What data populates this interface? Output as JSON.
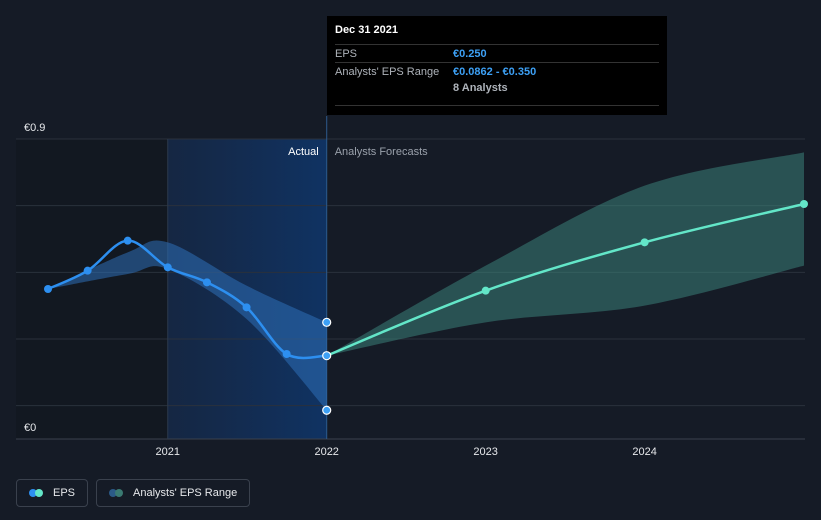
{
  "chart_data": {
    "type": "line",
    "x_axis": {
      "type": "time",
      "range": [
        "2020-03-31",
        "2024-12-31"
      ],
      "ticks": [
        "2021",
        "2022",
        "2023",
        "2024"
      ]
    },
    "y_axis": {
      "range": [
        0,
        0.9
      ],
      "labels": {
        "top": "€0.9",
        "bottom": "€0"
      },
      "gridlines": true
    },
    "sections": {
      "actual": "Actual",
      "forecast": "Analysts Forecasts"
    },
    "divider_date": "2021-12-31",
    "series": [
      {
        "name": "EPS",
        "kind": "actual",
        "color": "#2d8ff0",
        "points": [
          {
            "x": "2020-03-31",
            "y": 0.45
          },
          {
            "x": "2020-06-30",
            "y": 0.505
          },
          {
            "x": "2020-09-30",
            "y": 0.595
          },
          {
            "x": "2020-12-31",
            "y": 0.515
          },
          {
            "x": "2021-03-31",
            "y": 0.47
          },
          {
            "x": "2021-06-30",
            "y": 0.395
          },
          {
            "x": "2021-09-30",
            "y": 0.255
          },
          {
            "x": "2021-12-31",
            "y": 0.25
          }
        ]
      },
      {
        "name": "EPS",
        "kind": "forecast",
        "color": "#63e6c8",
        "points": [
          {
            "x": "2021-12-31",
            "y": 0.25
          },
          {
            "x": "2022-12-31",
            "y": 0.445
          },
          {
            "x": "2023-12-31",
            "y": 0.59
          },
          {
            "x": "2024-12-31",
            "y": 0.705
          }
        ]
      }
    ],
    "ranges": [
      {
        "name": "Analysts' EPS Range",
        "kind": "actual",
        "color": "#2d8ff0",
        "points": [
          {
            "x": "2020-03-31",
            "low": 0.45,
            "high": 0.45
          },
          {
            "x": "2020-09-30",
            "low": 0.495,
            "high": 0.56
          },
          {
            "x": "2020-12-31",
            "low": 0.51,
            "high": 0.59
          },
          {
            "x": "2021-06-30",
            "low": 0.36,
            "high": 0.46
          },
          {
            "x": "2021-12-31",
            "low": 0.0862,
            "high": 0.35
          }
        ]
      },
      {
        "name": "Analysts' EPS Range",
        "kind": "forecast",
        "color": "#63e6c8",
        "points": [
          {
            "x": "2021-12-31",
            "low": 0.25,
            "high": 0.25
          },
          {
            "x": "2022-12-31",
            "low": 0.35,
            "high": 0.52
          },
          {
            "x": "2023-12-31",
            "low": 0.4,
            "high": 0.76
          },
          {
            "x": "2024-12-31",
            "low": 0.52,
            "high": 0.86
          }
        ]
      }
    ],
    "tooltip": {
      "date": "Dec 31 2021",
      "rows": [
        {
          "label": "EPS",
          "value": "€0.250"
        },
        {
          "label": "Analysts' EPS Range",
          "value": "€0.0862 - €0.350"
        }
      ],
      "analysts": "8 Analysts"
    },
    "legend": [
      {
        "label": "EPS",
        "colors": [
          "#2d8ff0",
          "#63e6c8"
        ]
      },
      {
        "label": "Analysts' EPS Range",
        "colors": [
          "#2b5a87",
          "#3a7a72"
        ]
      }
    ],
    "legend_position": "bottom-left"
  }
}
